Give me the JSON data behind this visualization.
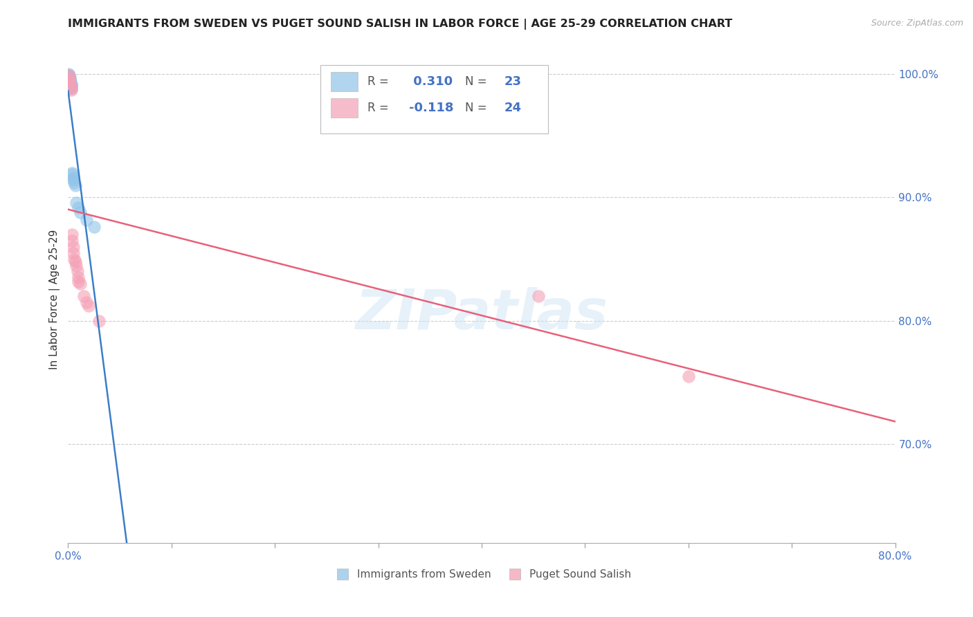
{
  "title": "IMMIGRANTS FROM SWEDEN VS PUGET SOUND SALISH IN LABOR FORCE | AGE 25-29 CORRELATION CHART",
  "source": "Source: ZipAtlas.com",
  "ylabel": "In Labor Force | Age 25-29",
  "legend_labels": [
    "Immigrants from Sweden",
    "Puget Sound Salish"
  ],
  "r_values": [
    0.31,
    -0.118
  ],
  "n_values": [
    23,
    24
  ],
  "blue_color": "#90c4e8",
  "pink_color": "#f4a0b5",
  "blue_line_color": "#3a7dc9",
  "pink_line_color": "#e8607a",
  "watermark": "ZIPatlas",
  "xlim": [
    0.0,
    0.8
  ],
  "ylim": [
    0.62,
    1.015
  ],
  "yticks": [
    0.7,
    0.8,
    0.9,
    1.0
  ],
  "xtick_positions": [
    0.0,
    0.1,
    0.2,
    0.3,
    0.4,
    0.5,
    0.6,
    0.7,
    0.8
  ],
  "blue_x": [
    0.0005,
    0.0007,
    0.001,
    0.001,
    0.0015,
    0.002,
    0.002,
    0.002,
    0.003,
    0.003,
    0.003,
    0.003,
    0.004,
    0.004,
    0.005,
    0.005,
    0.006,
    0.007,
    0.008,
    0.01,
    0.012,
    0.018,
    0.025
  ],
  "blue_y": [
    1.0,
    0.999,
    0.999,
    0.998,
    0.997,
    0.996,
    0.995,
    0.994,
    0.992,
    0.991,
    0.99,
    0.989,
    0.92,
    0.919,
    0.916,
    0.914,
    0.912,
    0.91,
    0.896,
    0.892,
    0.888,
    0.882,
    0.876
  ],
  "pink_x": [
    0.0005,
    0.001,
    0.001,
    0.0015,
    0.002,
    0.003,
    0.003,
    0.004,
    0.004,
    0.005,
    0.005,
    0.006,
    0.007,
    0.008,
    0.009,
    0.01,
    0.01,
    0.012,
    0.015,
    0.018,
    0.02,
    0.03,
    0.455,
    0.6
  ],
  "pink_y": [
    0.999,
    0.998,
    0.995,
    0.993,
    0.991,
    0.988,
    0.987,
    0.87,
    0.865,
    0.86,
    0.855,
    0.85,
    0.848,
    0.845,
    0.84,
    0.835,
    0.832,
    0.83,
    0.82,
    0.815,
    0.812,
    0.8,
    0.82,
    0.755
  ],
  "background_color": "#ffffff",
  "grid_color": "#cccccc"
}
